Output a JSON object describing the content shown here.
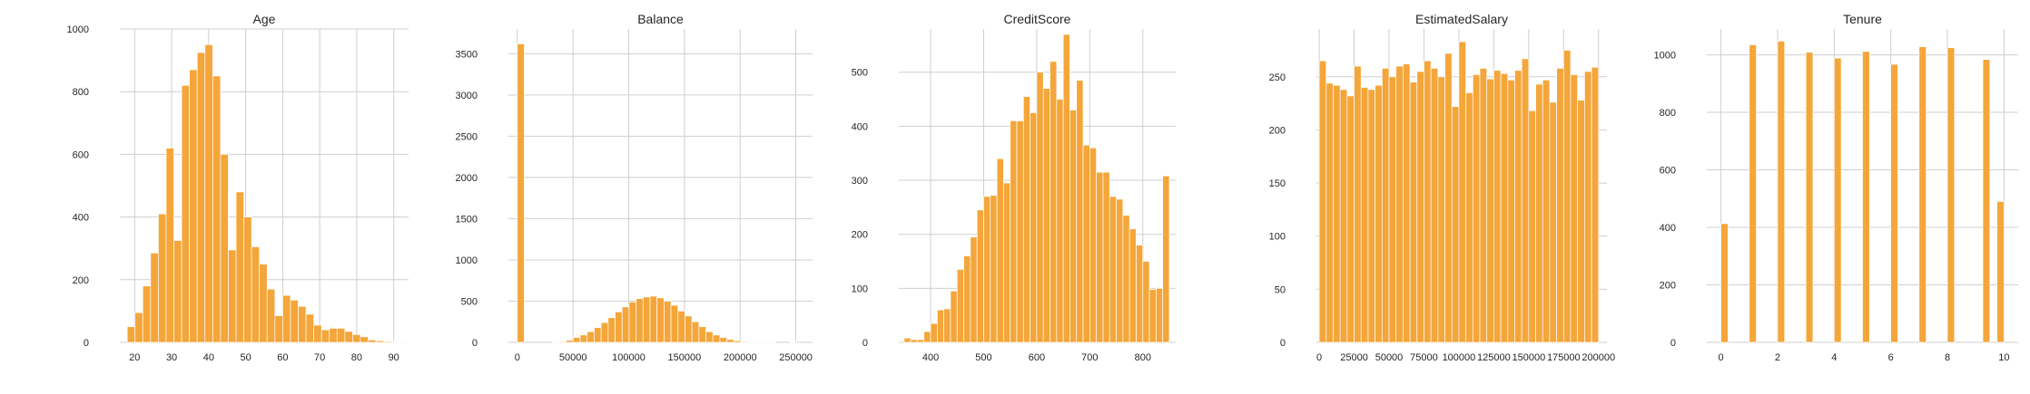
{
  "colors": {
    "bar": "#f4a63a",
    "bar_edge": "#ffffff",
    "grid": "#cfcfcf",
    "text": "#262626"
  },
  "chart_data": [
    {
      "type": "bar",
      "title": "Age",
      "xlim": [
        16,
        94
      ],
      "ylim": [
        0,
        1000
      ],
      "xticks": [
        20,
        30,
        40,
        50,
        60,
        70,
        80,
        90
      ],
      "yticks": [
        0,
        200,
        400,
        600,
        800,
        1000
      ],
      "bin_start": 18,
      "bin_width": 2.1,
      "values": [
        50,
        95,
        180,
        285,
        410,
        620,
        325,
        820,
        870,
        925,
        950,
        850,
        600,
        295,
        480,
        400,
        305,
        250,
        170,
        85,
        150,
        135,
        115,
        90,
        55,
        40,
        45,
        45,
        35,
        25,
        18,
        8,
        5,
        3,
        2,
        2,
        1,
        1
      ]
    },
    {
      "type": "bar",
      "title": "Balance",
      "xlim": [
        -8000,
        265000
      ],
      "ylim": [
        0,
        3800
      ],
      "xticks": [
        0,
        50000,
        100000,
        150000,
        200000,
        250000
      ],
      "yticks": [
        0,
        500,
        1000,
        1500,
        2000,
        2500,
        3000,
        3500
      ],
      "bin_start": 0,
      "bin_width": 6270,
      "values": [
        3620,
        0,
        0,
        0,
        0,
        5,
        10,
        25,
        60,
        90,
        130,
        180,
        240,
        300,
        370,
        430,
        490,
        530,
        550,
        560,
        540,
        500,
        450,
        380,
        320,
        250,
        190,
        130,
        90,
        60,
        35,
        20,
        10,
        5,
        3,
        2,
        1,
        0,
        0,
        1
      ]
    },
    {
      "type": "bar",
      "title": "CreditScore",
      "xlim": [
        340,
        862
      ],
      "ylim": [
        0,
        580
      ],
      "xticks": [
        400,
        500,
        600,
        700,
        800
      ],
      "yticks": [
        0,
        100,
        200,
        300,
        400,
        500
      ],
      "bin_start": 350,
      "bin_width": 12.5,
      "values": [
        8,
        5,
        5,
        20,
        35,
        60,
        62,
        95,
        135,
        160,
        195,
        245,
        270,
        272,
        340,
        295,
        410,
        410,
        455,
        425,
        500,
        470,
        520,
        450,
        570,
        430,
        485,
        365,
        360,
        315,
        315,
        270,
        265,
        235,
        210,
        180,
        150,
        98,
        100,
        308
      ]
    },
    {
      "type": "bar",
      "title": "EstimatedSalary",
      "xlim": [
        -2000,
        206000
      ],
      "ylim": [
        0,
        295
      ],
      "xticks": [
        0,
        25000,
        50000,
        75000,
        100000,
        125000,
        150000,
        175000,
        200000
      ],
      "xtick_labels": [
        "0",
        "25000",
        "50000",
        "75000",
        "100000",
        "125000",
        "150000",
        "175000",
        "200000"
      ],
      "yticks": [
        0,
        50,
        100,
        150,
        200,
        250
      ],
      "bin_start": 12,
      "bin_width": 4999.7,
      "values": [
        265,
        244,
        242,
        238,
        232,
        260,
        240,
        238,
        242,
        258,
        250,
        260,
        262,
        245,
        255,
        265,
        258,
        250,
        272,
        222,
        283,
        235,
        252,
        258,
        248,
        256,
        253,
        247,
        256,
        267,
        218,
        243,
        247,
        226,
        258,
        275,
        252,
        228,
        255,
        259
      ]
    },
    {
      "type": "bar",
      "title": "Tenure",
      "xlim": [
        -0.5,
        10.5
      ],
      "ylim": [
        0,
        1090
      ],
      "xticks": [
        0,
        2,
        4,
        6,
        8,
        10
      ],
      "yticks": [
        0,
        200,
        400,
        600,
        800,
        1000
      ],
      "bin_start": 0,
      "bin_width": 0.25,
      "values": [
        413,
        0,
        0,
        0,
        1035,
        0,
        0,
        0,
        1048,
        0,
        0,
        0,
        1009,
        0,
        0,
        0,
        989,
        0,
        0,
        0,
        1012,
        0,
        0,
        0,
        967,
        0,
        0,
        0,
        1028,
        0,
        0,
        0,
        1025,
        0,
        0,
        0,
        0,
        984,
        0,
        490
      ]
    }
  ]
}
